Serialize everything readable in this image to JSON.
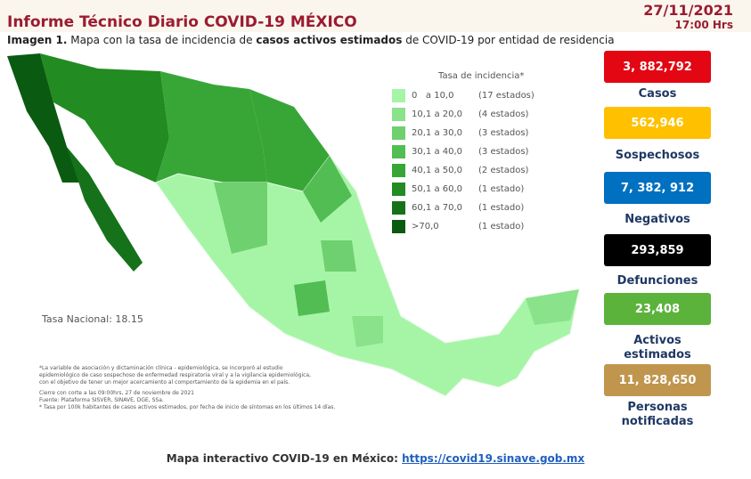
{
  "header": {
    "title": "Informe Técnico Diario COVID-19 MÉXICO",
    "date": "27/11/2021",
    "time": "17:00 Hrs"
  },
  "subtitle": {
    "parts": [
      "Imagen 1.",
      "Mapa con la tasa de incidencia de",
      "casos activos estimados",
      "de COVID-19 por entidad de residencia"
    ]
  },
  "legend": {
    "title": "Tasa de incidencia*",
    "rows": [
      {
        "range": "0   a 10,0",
        "count": "(17 estados)",
        "color": "#a6f5a6"
      },
      {
        "range": "10,1 a 20,0",
        "count": "(4 estados)",
        "color": "#8ae28a"
      },
      {
        "range": "20,1 a 30,0",
        "count": "(3 estados)",
        "color": "#6fd06f"
      },
      {
        "range": "30,1 a 40,0",
        "count": "(3 estados)",
        "color": "#52bd52"
      },
      {
        "range": "40,1 a 50,0",
        "count": "(2 estados)",
        "color": "#37a637"
      },
      {
        "range": "50,1 a 60,0",
        "count": "(1 estado)",
        "color": "#228b22"
      },
      {
        "range": "60,1 a 70,0",
        "count": "(1 estado)",
        "color": "#15721a"
      },
      {
        "range": ">70,0",
        "count": "(1 estado)",
        "color": "#0b5a12"
      }
    ]
  },
  "national_rate": "Tasa Nacional: 18.15",
  "notes": [
    "*La variable de asociación y dictaminación clínica - epidemiológica, se incorporó al estudio",
    "epidemiológico de caso sospechoso de enfermedad respiratoria viral y a la vigilancia epidemiológica,",
    "con el objetivo de tener un mejor acercamiento al comportamiento de la epidemia en el país.",
    "Cierre con corte a las 09:00hrs, 27 de noviembre de 2021",
    "Fuente: Plataforma SISVER, SINAVE, DGE, SSa.",
    "* Tasa por 100k habitantes de casos activos estimados, por fecha de inicio de síntomas en los últimos 14 días."
  ],
  "stats": [
    {
      "value": "3, 882,792",
      "label": "Casos",
      "color": "#e30613",
      "text_color": "#ffffff"
    },
    {
      "value": "562,946",
      "label": "Sospechosos",
      "color": "#ffc000",
      "text_color": "#ffffff"
    },
    {
      "value": "7, 382, 912",
      "label": "Negativos",
      "color": "#0070c0",
      "text_color": "#ffffff"
    },
    {
      "value": "293,859",
      "label": "Defunciones",
      "color": "#000000",
      "text_color": "#ffffff"
    },
    {
      "value": "23,408",
      "label": "Activos estimados",
      "color": "#5cb33c",
      "text_color": "#ffffff"
    },
    {
      "value": "11, 828,650",
      "label": "Personas notificadas",
      "color": "#c0964e",
      "text_color": "#ffffff"
    }
  ],
  "footer": {
    "text": "Mapa interactivo COVID-19 en México:",
    "link": "https://covid19.sinave.gob.mx"
  }
}
